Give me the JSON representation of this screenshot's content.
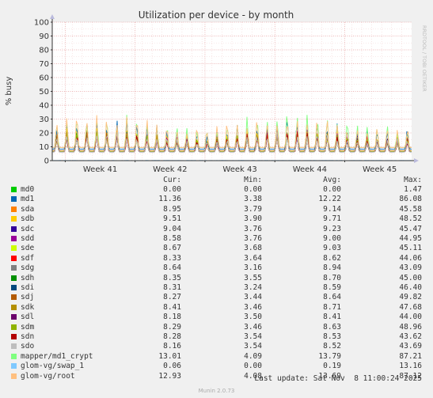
{
  "chart_data": {
    "type": "line",
    "title": "Utilization per device - by month",
    "ylabel": "% busy",
    "xlabel": "",
    "ylim": [
      0,
      100
    ],
    "yticks": [
      0,
      10,
      20,
      30,
      40,
      50,
      60,
      70,
      80,
      90,
      100
    ],
    "xticks": [
      "Week 41",
      "Week 42",
      "Week 43",
      "Week 44",
      "Week 45"
    ],
    "grid": true,
    "watermark": "RRDTOOL / TOBI OETIKER",
    "legend_headers": {
      "cur": "Cur:",
      "min": "Min:",
      "avg": "Avg:",
      "max": "Max:"
    },
    "series": [
      {
        "name": "md0",
        "color": "#00cc00",
        "cur": "0.00",
        "min": "0.00",
        "avg": "0.00",
        "max": "1.47"
      },
      {
        "name": "md1",
        "color": "#0066b3",
        "cur": "11.36",
        "min": "3.38",
        "avg": "12.22",
        "max": "86.08"
      },
      {
        "name": "sda",
        "color": "#ff8000",
        "cur": "8.95",
        "min": "3.79",
        "avg": "9.14",
        "max": "45.58"
      },
      {
        "name": "sdb",
        "color": "#ffcc00",
        "cur": "9.51",
        "min": "3.90",
        "avg": "9.71",
        "max": "48.52"
      },
      {
        "name": "sdc",
        "color": "#330099",
        "cur": "9.04",
        "min": "3.76",
        "avg": "9.23",
        "max": "45.47"
      },
      {
        "name": "sdd",
        "color": "#990099",
        "cur": "8.58",
        "min": "3.76",
        "avg": "9.00",
        "max": "44.95"
      },
      {
        "name": "sde",
        "color": "#ccff00",
        "cur": "8.67",
        "min": "3.68",
        "avg": "9.03",
        "max": "45.11"
      },
      {
        "name": "sdf",
        "color": "#ff0000",
        "cur": "8.33",
        "min": "3.64",
        "avg": "8.62",
        "max": "44.06"
      },
      {
        "name": "sdg",
        "color": "#808080",
        "cur": "8.64",
        "min": "3.16",
        "avg": "8.94",
        "max": "43.09"
      },
      {
        "name": "sdh",
        "color": "#008f00",
        "cur": "8.35",
        "min": "3.55",
        "avg": "8.70",
        "max": "45.00"
      },
      {
        "name": "sdi",
        "color": "#00487d",
        "cur": "8.31",
        "min": "3.24",
        "avg": "8.59",
        "max": "46.40"
      },
      {
        "name": "sdj",
        "color": "#b35a00",
        "cur": "8.27",
        "min": "3.44",
        "avg": "8.64",
        "max": "49.82"
      },
      {
        "name": "sdk",
        "color": "#b38f00",
        "cur": "8.41",
        "min": "3.46",
        "avg": "8.71",
        "max": "47.68"
      },
      {
        "name": "sdl",
        "color": "#6b006b",
        "cur": "8.18",
        "min": "3.50",
        "avg": "8.41",
        "max": "44.00"
      },
      {
        "name": "sdm",
        "color": "#8fb300",
        "cur": "8.29",
        "min": "3.46",
        "avg": "8.63",
        "max": "48.96"
      },
      {
        "name": "sdn",
        "color": "#b30000",
        "cur": "8.28",
        "min": "3.54",
        "avg": "8.53",
        "max": "43.62"
      },
      {
        "name": "sdo",
        "color": "#bebebe",
        "cur": "8.16",
        "min": "3.54",
        "avg": "8.52",
        "max": "43.69"
      },
      {
        "name": "mapper/md1_crypt",
        "color": "#80ff80",
        "cur": "13.01",
        "min": "4.09",
        "avg": "13.79",
        "max": "87.21"
      },
      {
        "name": "glom-vg/swap_1",
        "color": "#80c9ff",
        "cur": "0.06",
        "min": "0.00",
        "avg": "0.19",
        "max": "13.16"
      },
      {
        "name": "glom-vg/root",
        "color": "#ffc080",
        "cur": "12.93",
        "min": "4.08",
        "avg": "13.69",
        "max": "87.12"
      }
    ]
  },
  "footer": {
    "last_update": "Last update: Sat Nov  8 11:00:24 2025",
    "munin_version": "Munin 2.0.73"
  }
}
